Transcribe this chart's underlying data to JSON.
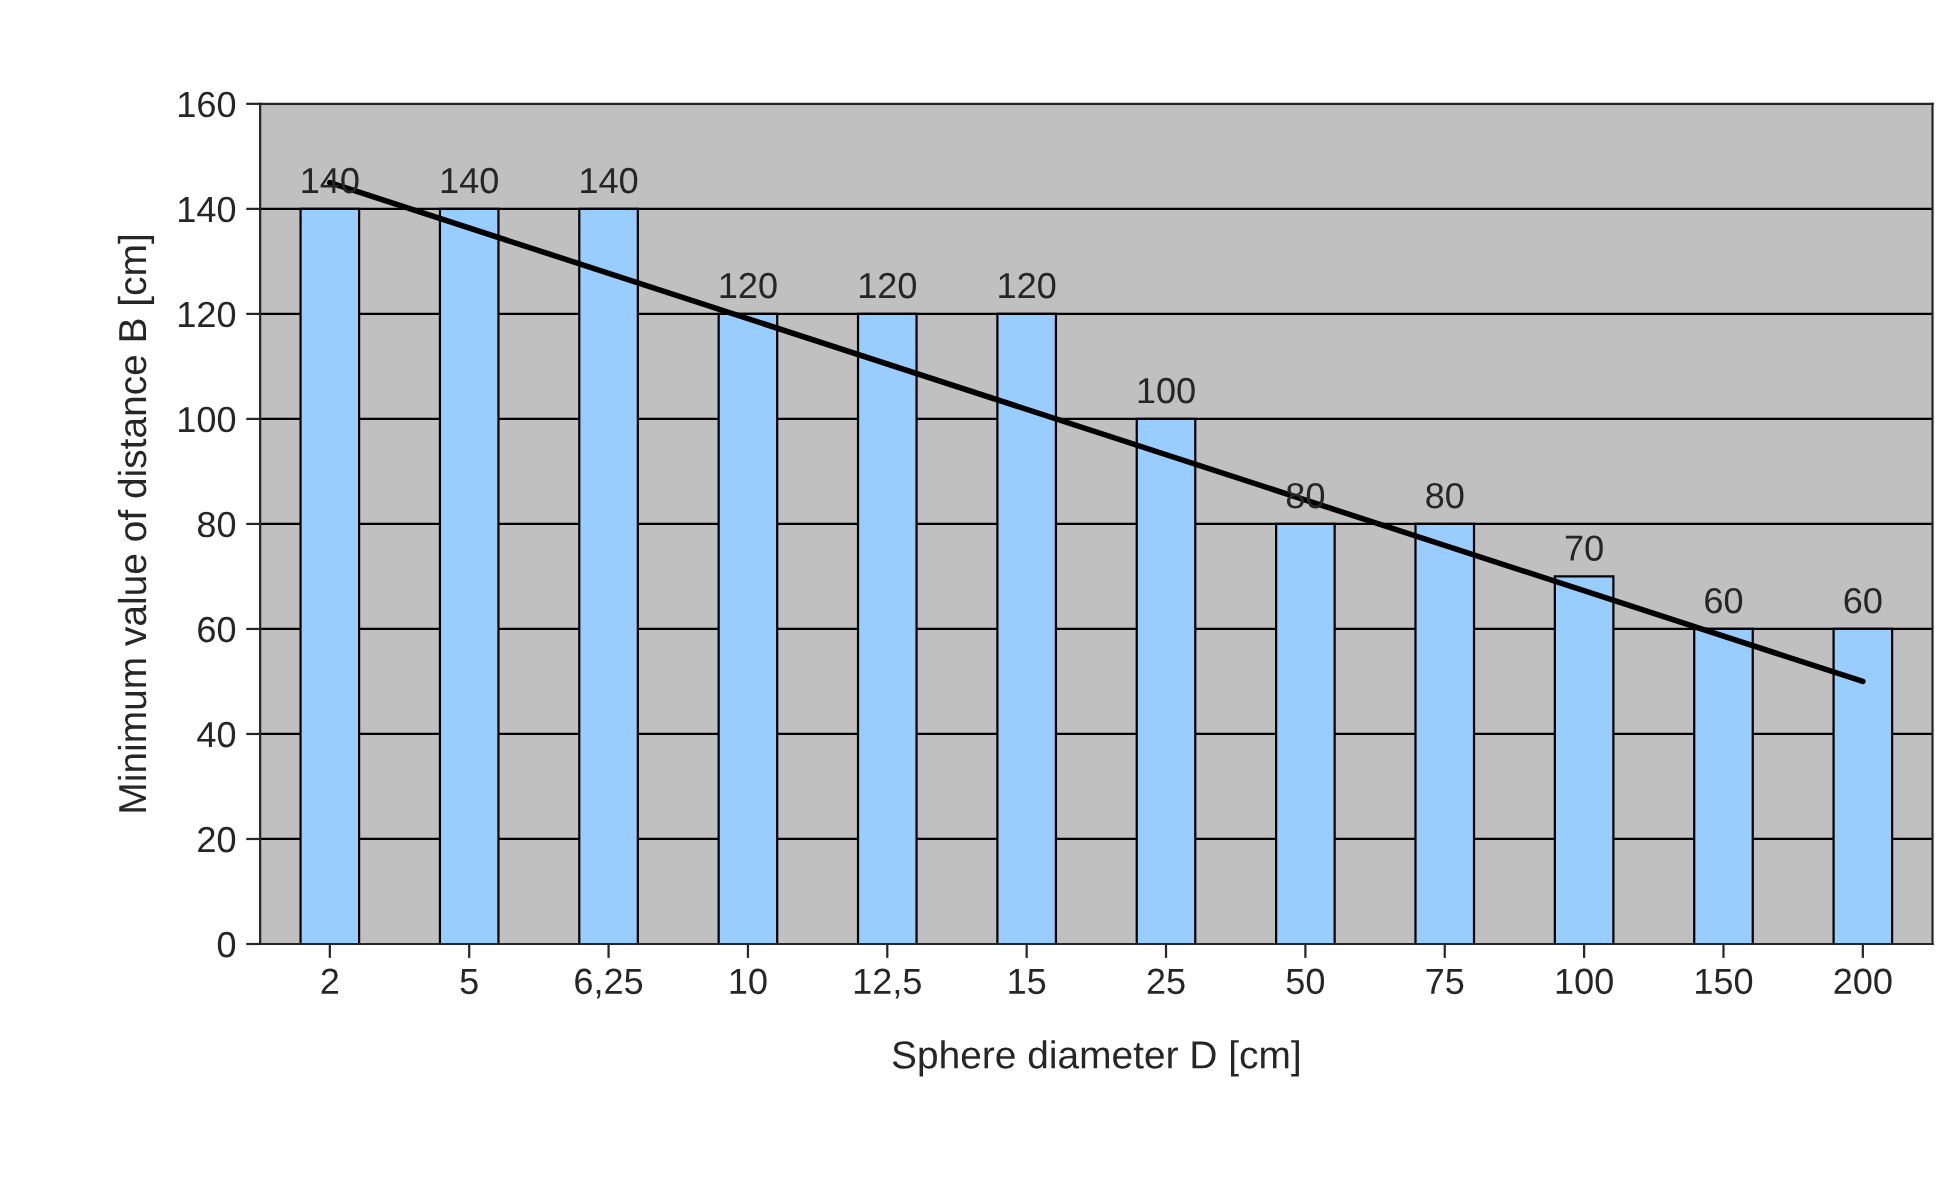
{
  "chart_data": {
    "type": "bar",
    "xlabel": "Sphere diameter D [cm]",
    "ylabel": "Minimum value of distance B [cm]",
    "categories": [
      "2",
      "5",
      "6,25",
      "10",
      "12,5",
      "15",
      "25",
      "50",
      "75",
      "100",
      "150",
      "200"
    ],
    "series": [
      {
        "color": "#99ccff",
        "values": [
          140,
          140,
          140,
          120,
          120,
          120,
          100,
          80,
          80,
          70,
          60,
          60
        ],
        "value_labels": [
          "140",
          "140",
          "140",
          "120",
          "120",
          "120",
          "100",
          "80",
          "80",
          "70",
          "60",
          "60"
        ]
      },
      {
        "type": "line",
        "color": "#000000",
        "x": [
          "2",
          "200"
        ],
        "values": [
          145,
          50
        ]
      }
    ],
    "ylim": [
      0,
      160
    ],
    "yticks": [
      0,
      20,
      40,
      60,
      80,
      100,
      120,
      140,
      160
    ],
    "grid": "y",
    "legend": false
  }
}
